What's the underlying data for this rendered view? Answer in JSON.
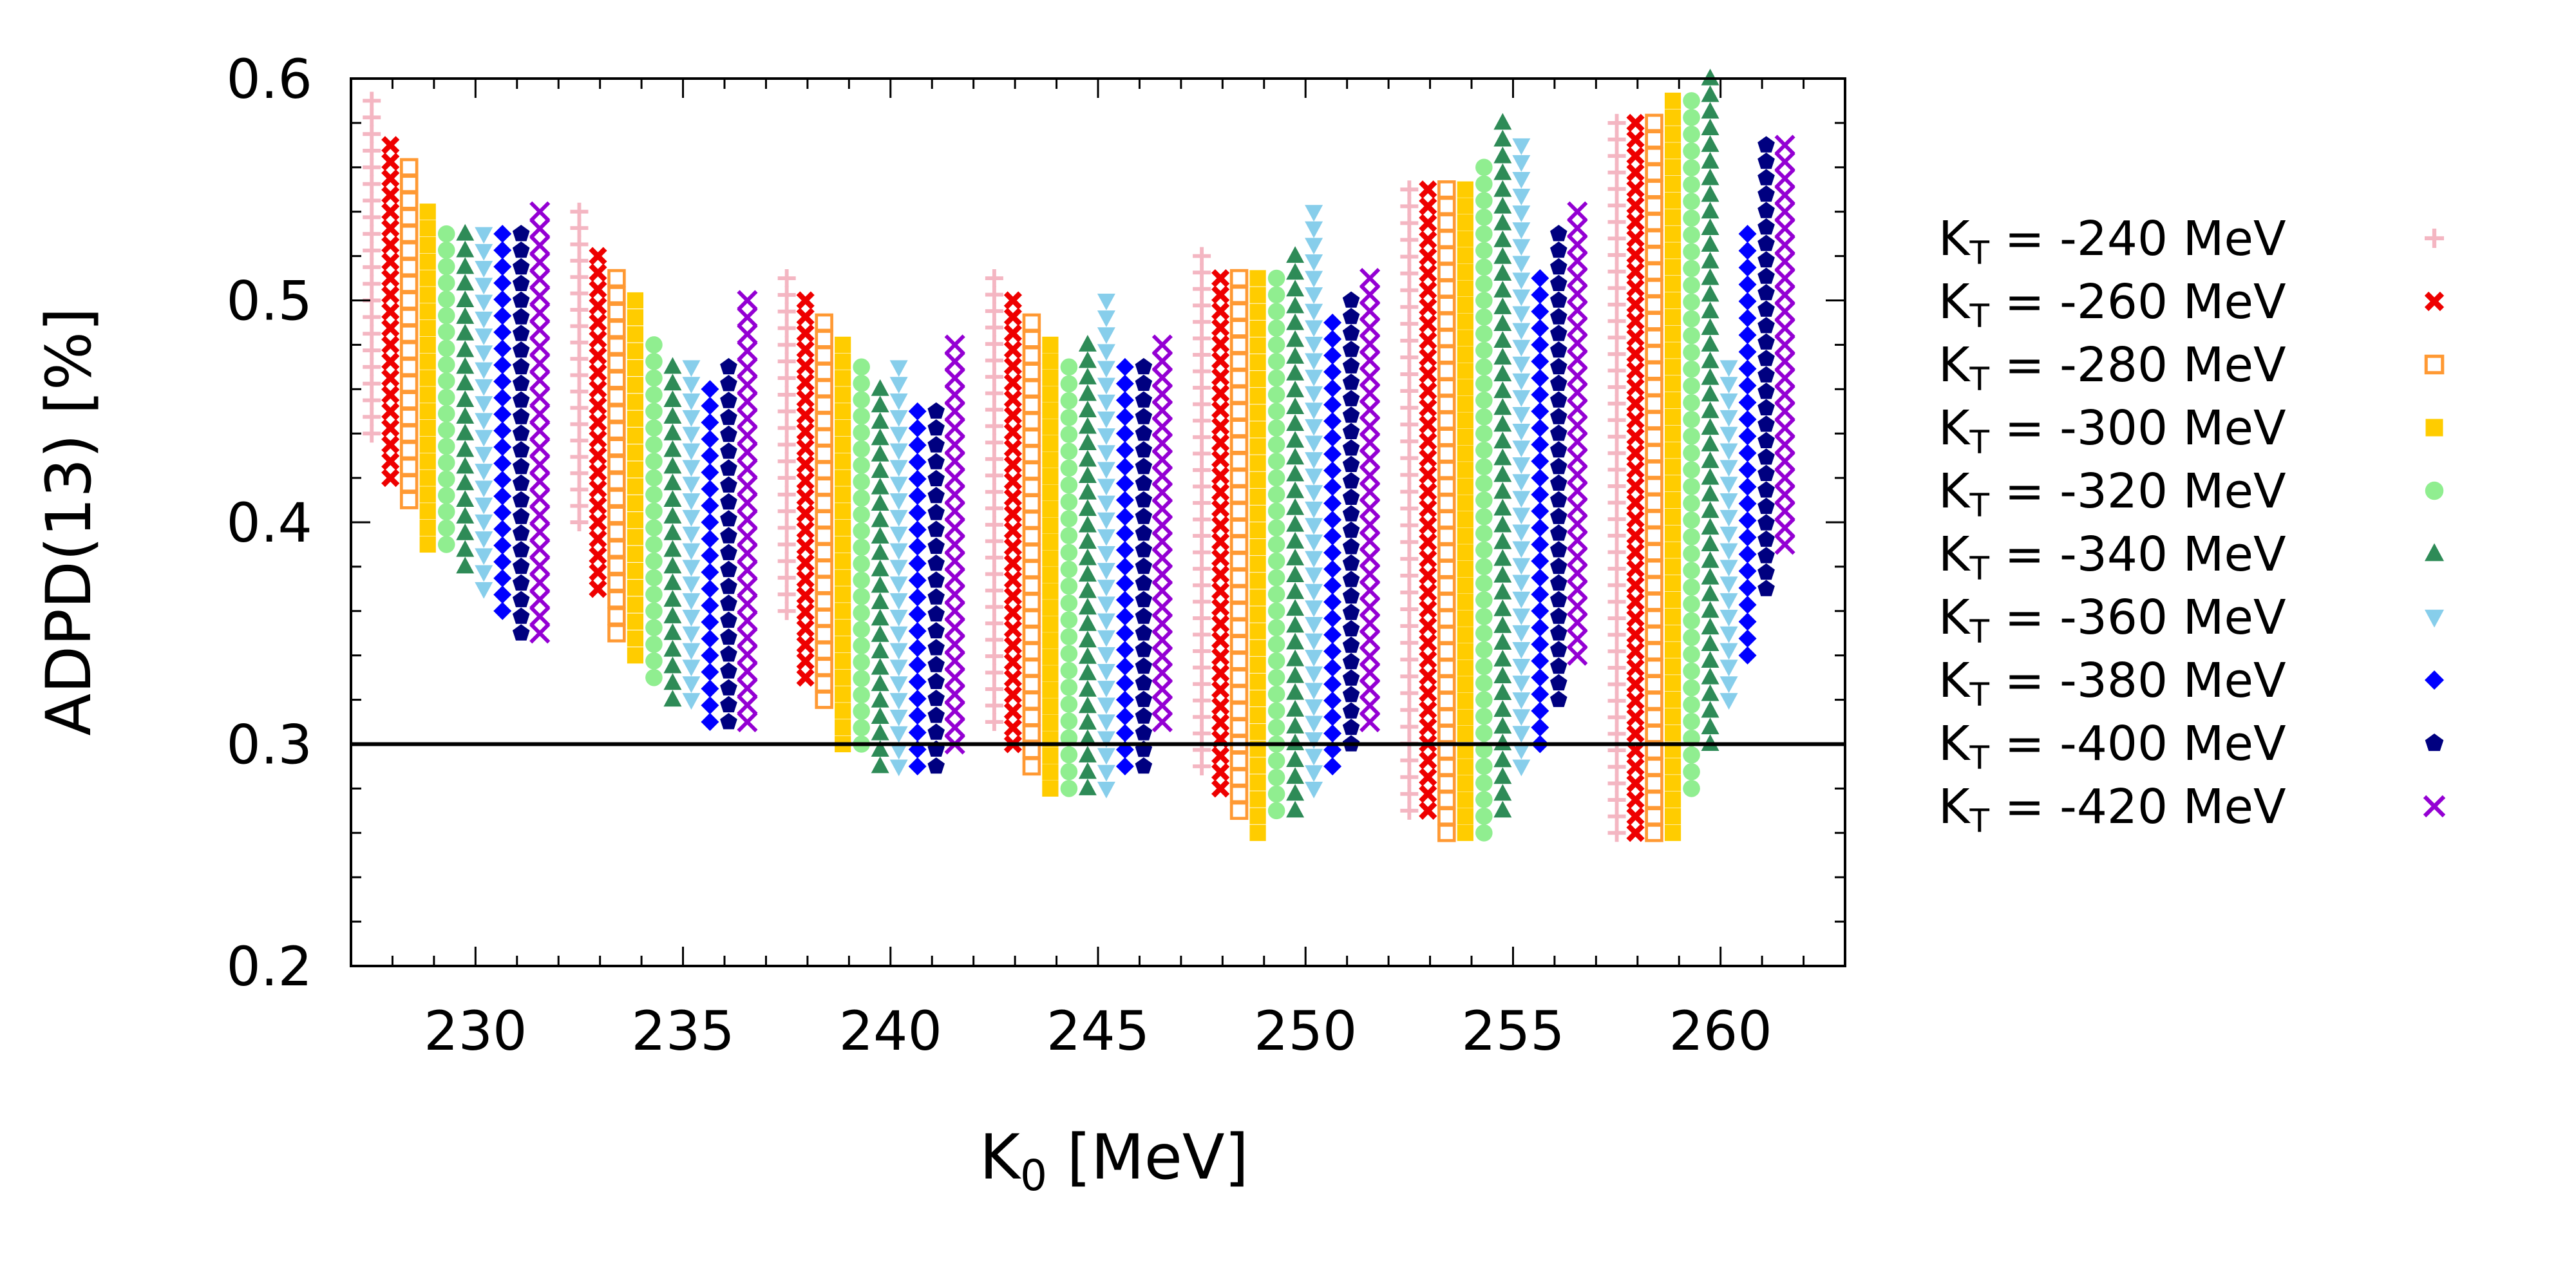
{
  "chart_data": {
    "type": "scatter",
    "title": "",
    "xlabel": "K",
    "xlabel_sub": "0",
    "xlabel_unit": " [MeV]",
    "ylabel": "ADPD(13) [%]",
    "xlim": [
      227,
      263
    ],
    "ylim": [
      0.2,
      0.6
    ],
    "xticks": [
      230,
      235,
      240,
      245,
      250,
      255,
      260
    ],
    "xtick_labels": [
      "230",
      "235",
      "240",
      "245",
      "250",
      "255",
      "260"
    ],
    "yticks": [
      0.2,
      0.3,
      0.4,
      0.5,
      0.6
    ],
    "ytick_labels": [
      "0.2",
      "0.3",
      "0.4",
      "0.5",
      "0.6"
    ],
    "reference_line": {
      "y": 0.3,
      "color": "#000000"
    },
    "grid": false,
    "legend_position": "right-outside",
    "clusters": [
      {
        "k0": 227.5,
        "min": [
          0.44,
          0.42,
          0.41,
          0.39,
          0.39,
          0.38,
          0.37,
          0.36,
          0.35,
          0.35
        ],
        "max": [
          0.59,
          0.57,
          0.56,
          0.54,
          0.53,
          0.53,
          0.53,
          0.53,
          0.53,
          0.54
        ]
      },
      {
        "k0": 232.5,
        "min": [
          0.4,
          0.37,
          0.35,
          0.34,
          0.33,
          0.32,
          0.32,
          0.31,
          0.31,
          0.31
        ],
        "max": [
          0.54,
          0.52,
          0.51,
          0.5,
          0.48,
          0.47,
          0.47,
          0.46,
          0.47,
          0.5
        ]
      },
      {
        "k0": 237.5,
        "min": [
          0.36,
          0.33,
          0.32,
          0.3,
          0.3,
          0.29,
          0.29,
          0.29,
          0.29,
          0.3
        ],
        "max": [
          0.51,
          0.5,
          0.49,
          0.48,
          0.47,
          0.46,
          0.47,
          0.45,
          0.45,
          0.48
        ]
      },
      {
        "k0": 242.5,
        "min": [
          0.31,
          0.3,
          0.29,
          0.28,
          0.28,
          0.28,
          0.28,
          0.29,
          0.29,
          0.31
        ],
        "max": [
          0.51,
          0.5,
          0.49,
          0.48,
          0.47,
          0.48,
          0.5,
          0.47,
          0.47,
          0.48
        ]
      },
      {
        "k0": 247.5,
        "min": [
          0.29,
          0.28,
          0.27,
          0.26,
          0.27,
          0.27,
          0.28,
          0.29,
          0.3,
          0.31
        ],
        "max": [
          0.52,
          0.51,
          0.51,
          0.51,
          0.51,
          0.52,
          0.54,
          0.49,
          0.5,
          0.51
        ]
      },
      {
        "k0": 252.5,
        "min": [
          0.27,
          0.27,
          0.26,
          0.26,
          0.26,
          0.27,
          0.29,
          0.3,
          0.32,
          0.34
        ],
        "max": [
          0.55,
          0.55,
          0.55,
          0.55,
          0.56,
          0.58,
          0.57,
          0.51,
          0.53,
          0.54
        ]
      },
      {
        "k0": 257.5,
        "min": [
          0.26,
          0.26,
          0.26,
          0.26,
          0.28,
          0.3,
          0.32,
          0.34,
          0.37,
          0.39
        ],
        "max": [
          0.58,
          0.58,
          0.58,
          0.59,
          0.59,
          0.6,
          0.47,
          0.53,
          0.57,
          0.57
        ]
      }
    ],
    "series": [
      {
        "name": "-240",
        "color": "#f4b6c2",
        "marker": "plus"
      },
      {
        "name": "-260",
        "color": "#ee0000",
        "marker": "xbox"
      },
      {
        "name": "-280",
        "color": "#ff9933",
        "marker": "opensquare"
      },
      {
        "name": "-300",
        "color": "#ffcc00",
        "marker": "square"
      },
      {
        "name": "-320",
        "color": "#90ee90",
        "marker": "circle"
      },
      {
        "name": "-340",
        "color": "#2e8b57",
        "marker": "triangle"
      },
      {
        "name": "-360",
        "color": "#87ceeb",
        "marker": "invtriangle"
      },
      {
        "name": "-380",
        "color": "#0000ff",
        "marker": "diamond"
      },
      {
        "name": "-400",
        "color": "#000080",
        "marker": "pentagon"
      },
      {
        "name": "-420",
        "color": "#9400d3",
        "marker": "cross"
      }
    ],
    "legend_prefix": "K",
    "legend_sub": "T",
    "legend_mid": " = ",
    "legend_unit": " MeV"
  }
}
